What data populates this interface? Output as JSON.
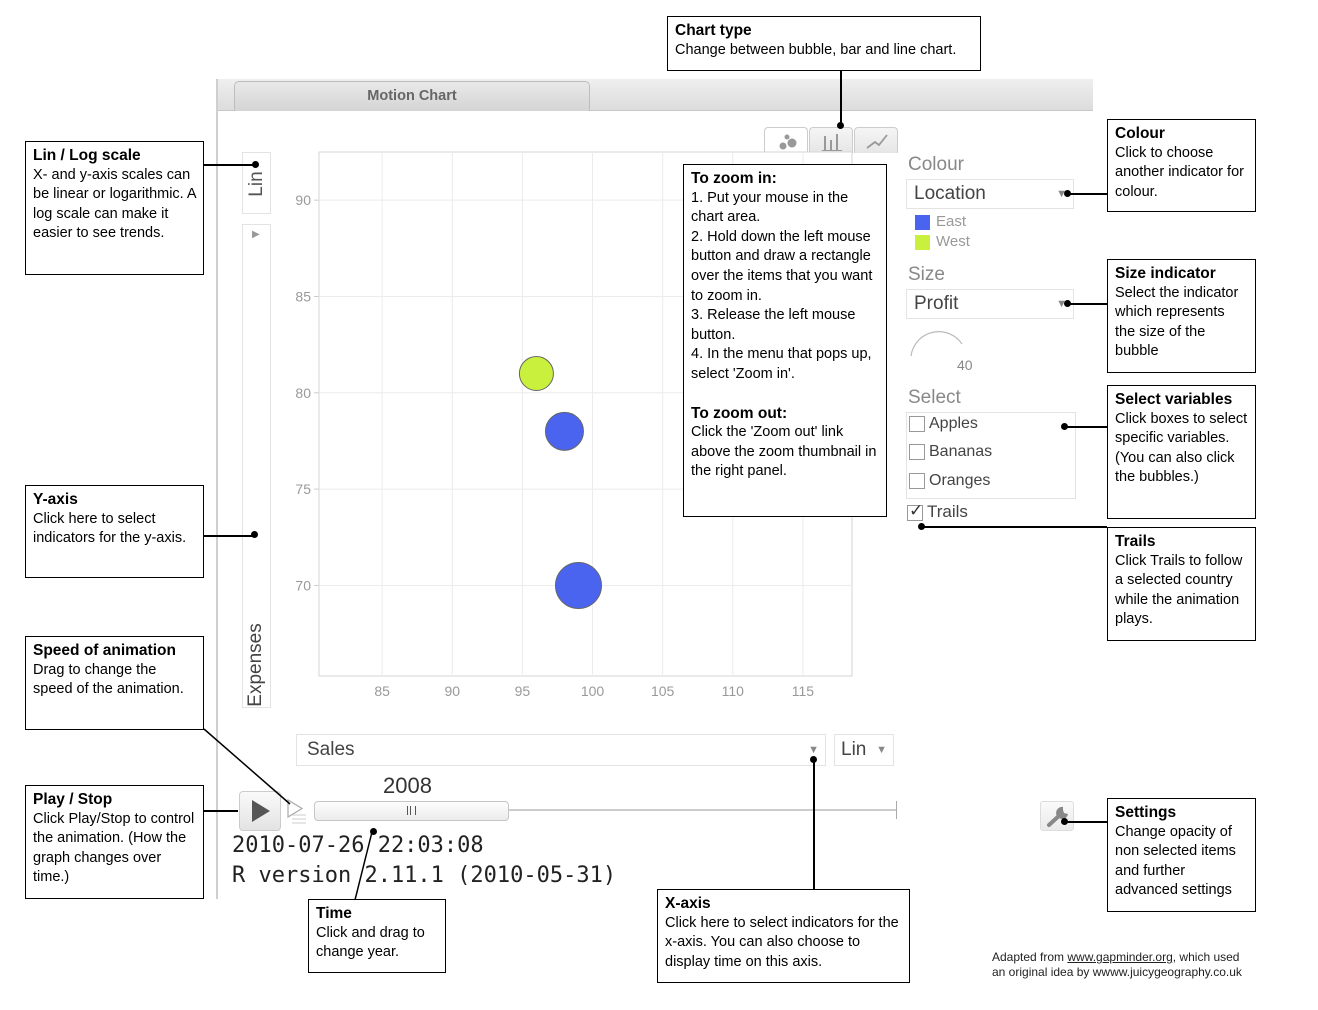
{
  "window": {
    "tab_label": "Motion Chart"
  },
  "toolbar": {
    "chart_types": [
      "bubble-icon",
      "bar-chart-icon",
      "line-chart-icon"
    ]
  },
  "yaxis": {
    "scale": "Lin",
    "variable": "Expenses"
  },
  "xaxis": {
    "variable": "Sales",
    "scale": "Lin"
  },
  "chart_data": {
    "type": "scatter",
    "x_ticks": [
      85,
      90,
      95,
      100,
      105,
      110,
      115
    ],
    "y_ticks": [
      70,
      75,
      80,
      85,
      90
    ],
    "xlim": [
      80.5,
      118.5
    ],
    "ylim": [
      65.3,
      92.5
    ],
    "points": [
      {
        "x": 96,
        "y": 81,
        "size": 34,
        "color": "#c8f03c"
      },
      {
        "x": 98,
        "y": 78,
        "size": 38,
        "color": "#4a64f0"
      },
      {
        "x": 99,
        "y": 70,
        "size": 46,
        "color": "#4a64f0"
      }
    ]
  },
  "panel": {
    "colour_label": "Colour",
    "colour_value": "Location",
    "legend": [
      {
        "label": "East",
        "color": "#4a64f0"
      },
      {
        "label": "West",
        "color": "#c8f03c"
      }
    ],
    "size_label": "Size",
    "size_value": "Profit",
    "size_scale": "40",
    "select_label": "Select",
    "select_items": [
      "Apples",
      "Bananas",
      "Oranges"
    ],
    "trails_label": "Trails",
    "trails_checked": true
  },
  "playback": {
    "year": "2008"
  },
  "console": {
    "line1": "2010-07-26 22:03:08",
    "line2": "R version 2.11.1 (2010-05-31)"
  },
  "callouts": {
    "chart_type": {
      "title": "Chart type",
      "body": "Change between bubble, bar and line chart."
    },
    "lin_log": {
      "title": "Lin / Log scale",
      "body": "X- and y-axis scales can be linear or logarithmic. A log scale can make it easier to see trends."
    },
    "y_axis": {
      "title": "Y-axis",
      "body": "Click here to select indicators for the y-axis."
    },
    "speed": {
      "title": "Speed of animation",
      "body": "Drag to change the speed of the animation."
    },
    "play": {
      "title": "Play / Stop",
      "body": "Click Play/Stop to control the animation. (How the graph changes over time.)"
    },
    "time": {
      "title": "Time",
      "body": "Click and drag to change year."
    },
    "x_axis": {
      "title": "X-axis",
      "body": "Click here to select indicators for the x-axis. You can also choose to display time on this axis."
    },
    "zoom": {
      "in_title": "To zoom in:",
      "in_steps": [
        "1. Put your mouse in the chart area.",
        "2. Hold down the left mouse button and draw a rectangle over the items that you want to zoom in.",
        "3. Release the left mouse button.",
        "4. In the menu that pops up, select 'Zoom in'."
      ],
      "out_title": "To zoom out:",
      "out_body": "Click the 'Zoom out' link above the zoom thumbnail in the right panel."
    },
    "colour": {
      "title": "Colour",
      "body": "Click to choose another indicator for colour."
    },
    "size": {
      "title": "Size indicator",
      "body": "Select the indicator which represents the size of the bubble"
    },
    "select": {
      "title": "Select variables",
      "body": "Click boxes to select specific variables. (You can also click the bubbles.)"
    },
    "trails": {
      "title": "Trails",
      "body": "Click Trails to follow a selected country while the animation plays."
    },
    "settings": {
      "title": "Settings",
      "body": "Change opacity of non selected items and further advanced settings"
    }
  },
  "credit": {
    "prefix": "Adapted from ",
    "link1": "www.gapminder.org",
    "middle": ", which used",
    "line2": "an original idea by wwww.juicygeography.co.uk"
  }
}
